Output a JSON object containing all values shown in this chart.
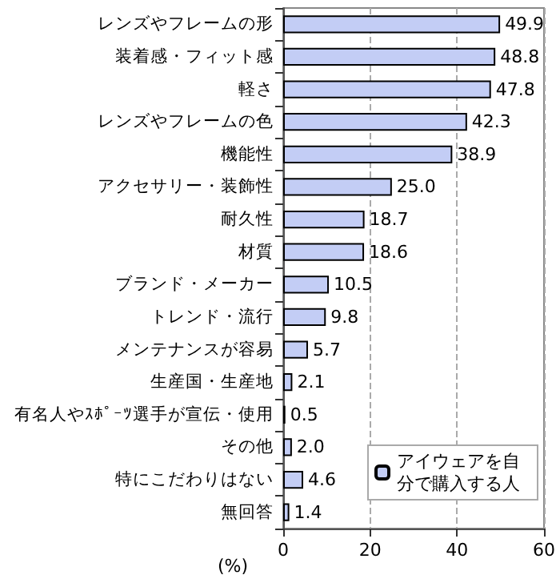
{
  "chart_data": {
    "type": "bar",
    "orientation": "horizontal",
    "xlabel": "(%)",
    "categories": [
      "レンズやフレームの形",
      "装着感・フィット感",
      "軽さ",
      "レンズやフレームの色",
      "機能性",
      "アクセサリー・装飾性",
      "耐久性",
      "材質",
      "ブランド・メーカー",
      "トレンド・流行",
      "メンテナンスが容易",
      "生産国・生産地",
      "有名人やｽﾎﾟｰﾂ選手が宣伝・使用",
      "その他",
      "特にこだわりはない",
      "無回答"
    ],
    "series": [
      {
        "name": "アイウェアを自分で購入する人",
        "color": "#c3cdf5",
        "values": [
          49.9,
          48.8,
          47.8,
          42.3,
          38.9,
          25.0,
          18.7,
          18.6,
          10.5,
          9.8,
          5.7,
          2.1,
          0.5,
          2.0,
          4.6,
          1.4
        ],
        "value_labels": [
          "49.9",
          "48.8",
          "47.8",
          "42.3",
          "38.9",
          "25.0",
          "18.7",
          "18.6",
          "10.5",
          "9.8",
          "5.7",
          "2.1",
          "0.5",
          "2.0",
          "4.6",
          "1.4"
        ]
      }
    ],
    "xlim": [
      0,
      60
    ],
    "xticks": [
      0,
      20,
      40,
      60
    ],
    "grid": "x",
    "legend": "bottom right"
  }
}
